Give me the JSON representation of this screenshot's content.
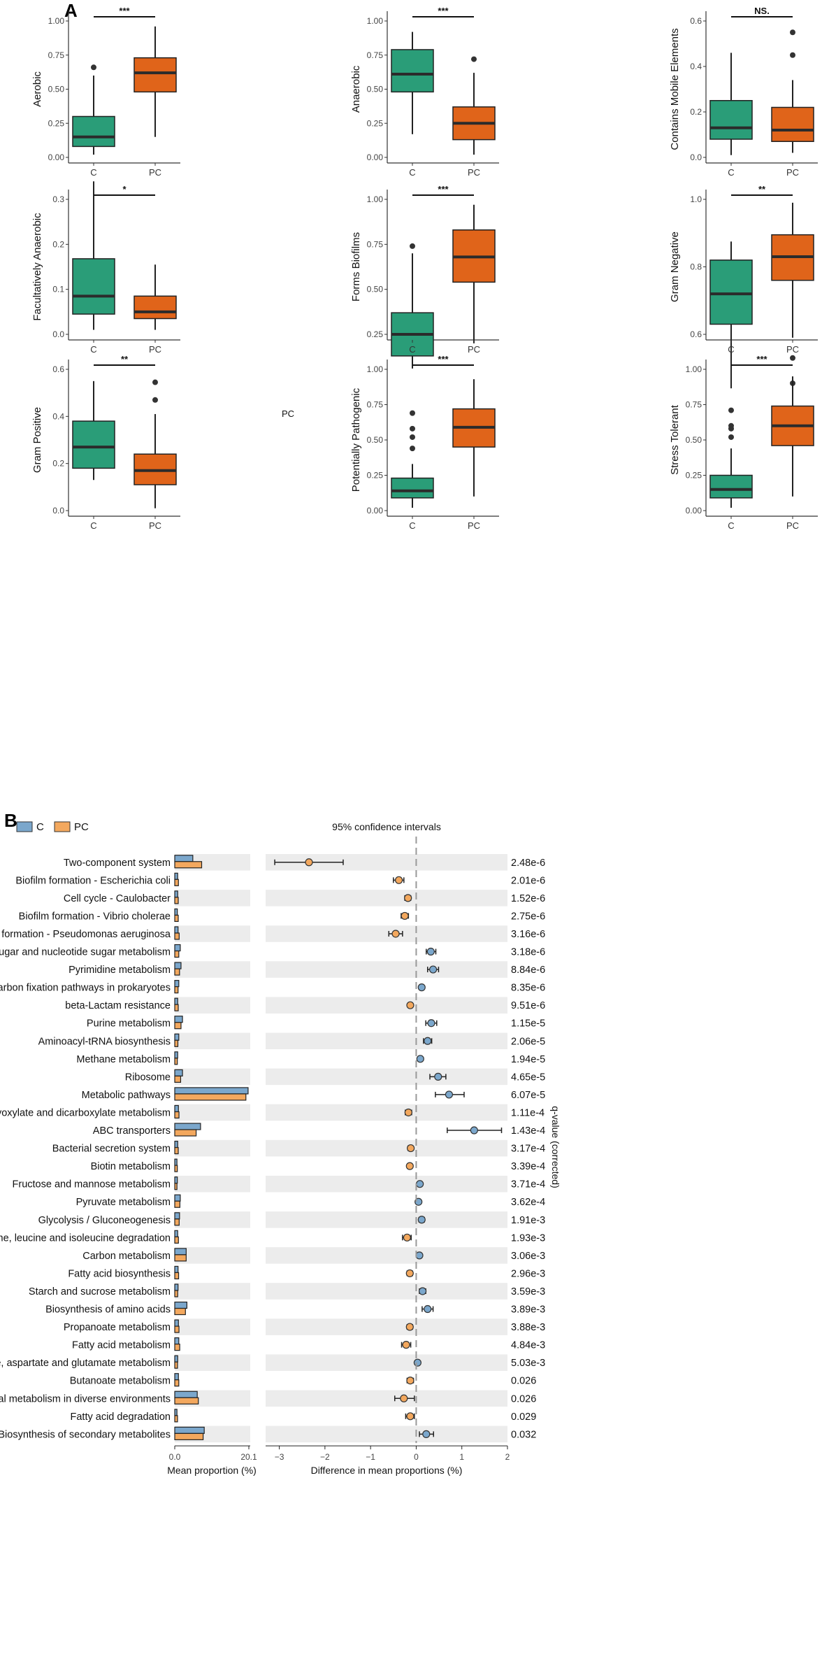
{
  "panel_a_label": "A",
  "panel_b_label": "B",
  "panel_a": {
    "group_labels": [
      "C",
      "PC"
    ],
    "colors": {
      "C": "#2a9d78",
      "PC": "#e0641a"
    },
    "plots": [
      {
        "ylabel": "Aerobic",
        "sig": "***",
        "yticks": [
          0.0,
          0.25,
          0.5,
          0.75,
          1.0
        ],
        "tick_labels": [
          "0.00",
          "0.25",
          "0.50",
          "0.75",
          "1.00"
        ],
        "boxes": [
          {
            "min": 0.02,
            "q1": 0.08,
            "med": 0.15,
            "q3": 0.3,
            "max": 0.6,
            "outliers": [
              0.66
            ]
          },
          {
            "min": 0.15,
            "q1": 0.48,
            "med": 0.62,
            "q3": 0.73,
            "max": 0.96,
            "outliers": []
          }
        ]
      },
      {
        "ylabel": "Anaerobic",
        "sig": "***",
        "yticks": [
          0.0,
          0.25,
          0.5,
          0.75,
          1.0
        ],
        "tick_labels": [
          "0.00",
          "0.25",
          "0.50",
          "0.75",
          "1.00"
        ],
        "boxes": [
          {
            "min": 0.17,
            "q1": 0.48,
            "med": 0.61,
            "q3": 0.79,
            "max": 0.92,
            "outliers": []
          },
          {
            "min": 0.02,
            "q1": 0.13,
            "med": 0.25,
            "q3": 0.37,
            "max": 0.62,
            "outliers": [
              0.72
            ]
          }
        ]
      },
      {
        "ylabel": "Contains Mobile Elements",
        "sig": "NS.",
        "yticks": [
          0.0,
          0.2,
          0.4,
          0.6
        ],
        "tick_labels": [
          "0.0",
          "0.2",
          "0.4",
          "0.6"
        ],
        "boxes": [
          {
            "min": 0.01,
            "q1": 0.08,
            "med": 0.13,
            "q3": 0.25,
            "max": 0.46,
            "outliers": []
          },
          {
            "min": 0.02,
            "q1": 0.07,
            "med": 0.12,
            "q3": 0.22,
            "max": 0.34,
            "outliers": [
              0.45,
              0.55
            ]
          }
        ]
      },
      {
        "ylabel": "Facultatively Anaerobic",
        "sig": "*",
        "yticks": [
          0.0,
          0.1,
          0.2,
          0.3
        ],
        "tick_labels": [
          "0.0",
          "0.1",
          "0.2",
          "0.3"
        ],
        "boxes": [
          {
            "min": 0.01,
            "q1": 0.045,
            "med": 0.085,
            "q3": 0.168,
            "max": 0.34,
            "outliers": []
          },
          {
            "min": 0.01,
            "q1": 0.035,
            "med": 0.05,
            "q3": 0.085,
            "max": 0.155,
            "outliers": []
          }
        ]
      },
      {
        "ylabel": "Forms Biofilms",
        "sig": "***",
        "yticks": [
          0.25,
          0.5,
          0.75,
          1.0
        ],
        "tick_labels": [
          "0.25",
          "0.50",
          "0.75",
          "1.00"
        ],
        "boxes": [
          {
            "min": 0.06,
            "q1": 0.13,
            "med": 0.25,
            "q3": 0.37,
            "max": 0.7,
            "outliers": [
              0.74
            ]
          },
          {
            "min": 0.2,
            "q1": 0.54,
            "med": 0.68,
            "q3": 0.83,
            "max": 0.97,
            "outliers": []
          }
        ]
      },
      {
        "ylabel": "Gram Negative",
        "sig": "**",
        "yticks": [
          0.6,
          0.8,
          1.0
        ],
        "tick_labels": [
          "0.6",
          "0.8",
          "1.0"
        ],
        "boxes": [
          {
            "min": 0.44,
            "q1": 0.63,
            "med": 0.72,
            "q3": 0.82,
            "max": 0.875,
            "outliers": []
          },
          {
            "min": 0.59,
            "q1": 0.76,
            "med": 0.83,
            "q3": 0.895,
            "max": 0.99,
            "outliers": [
              0.53,
              0.455
            ]
          }
        ]
      },
      {
        "ylabel": "Gram Positive",
        "sig": "**",
        "yticks": [
          0.0,
          0.2,
          0.4,
          0.6
        ],
        "tick_labels": [
          "0.0",
          "0.2",
          "0.4",
          "0.6"
        ],
        "boxes": [
          {
            "min": 0.13,
            "q1": 0.18,
            "med": 0.27,
            "q3": 0.38,
            "max": 0.55,
            "outliers": []
          },
          {
            "min": 0.01,
            "q1": 0.11,
            "med": 0.17,
            "q3": 0.24,
            "max": 0.41,
            "outliers": [
              0.47,
              0.545
            ]
          }
        ]
      },
      {
        "ylabel": "Potentially Pathogenic",
        "sig": "***",
        "yticks": [
          0.0,
          0.25,
          0.5,
          0.75,
          1.0
        ],
        "tick_labels": [
          "0.00",
          "0.25",
          "0.50",
          "0.75",
          "1.00"
        ],
        "boxes": [
          {
            "min": 0.02,
            "q1": 0.09,
            "med": 0.14,
            "q3": 0.23,
            "max": 0.33,
            "outliers": [
              0.44,
              0.52,
              0.58,
              0.69
            ]
          },
          {
            "min": 0.1,
            "q1": 0.45,
            "med": 0.59,
            "q3": 0.72,
            "max": 0.93,
            "outliers": []
          }
        ]
      },
      {
        "ylabel": "Stress Tolerant",
        "sig": "***",
        "yticks": [
          0.0,
          0.25,
          0.5,
          0.75,
          1.0
        ],
        "tick_labels": [
          "0.00",
          "0.25",
          "0.50",
          "0.75",
          "1.00"
        ],
        "boxes": [
          {
            "min": 0.02,
            "q1": 0.09,
            "med": 0.15,
            "q3": 0.25,
            "max": 0.44,
            "outliers": [
              0.52,
              0.58,
              0.6,
              0.71
            ]
          },
          {
            "min": 0.1,
            "q1": 0.46,
            "med": 0.6,
            "q3": 0.74,
            "max": 0.95,
            "outliers": []
          }
        ]
      }
    ]
  },
  "stray_label": "PC",
  "panel_b": {
    "legend": [
      {
        "name": "C",
        "color": "#7ba7cc"
      },
      {
        "name": "PC",
        "color": "#f3a85e"
      }
    ],
    "ci_title": "95% confidence intervals",
    "mean_xlabel": "Mean proportion (%)",
    "diff_xlabel": "Difference in mean proportions (%)",
    "qval_label": "q-value (corrected)",
    "mean_ticks": [
      "0.0",
      "20.1"
    ],
    "diff_ticks": [
      "−3",
      "−2",
      "−1",
      "0",
      "1",
      "2"
    ]
  },
  "chart_data": {
    "panel_a": {
      "type": "box",
      "groups": [
        "C",
        "PC"
      ],
      "plots": [
        "Aerobic",
        "Anaerobic",
        "Contains Mobile Elements",
        "Facultatively Anaerobic",
        "Forms Biofilms",
        "Gram Negative",
        "Gram Positive",
        "Potentially Pathogenic",
        "Stress Tolerant"
      ],
      "significance": [
        "***",
        "***",
        "NS.",
        "*",
        "***",
        "**",
        "**",
        "***",
        "***"
      ]
    },
    "panel_b": {
      "type": "extended_error_bar",
      "mean_xlim": [
        0,
        20.1
      ],
      "diff_xlim": [
        -3.3,
        2
      ],
      "rows": [
        {
          "name": "Two-component system",
          "mean_c": 4.9,
          "mean_pc": 7.3,
          "diff": -2.35,
          "lo": -3.1,
          "hi": -1.6,
          "q": "2.48e-6"
        },
        {
          "name": "Biofilm formation - Escherichia coli",
          "mean_c": 0.8,
          "mean_pc": 1.0,
          "diff": -0.38,
          "lo": -0.5,
          "hi": -0.27,
          "q": "2.01e-6"
        },
        {
          "name": "Cell cycle - Caulobacter",
          "mean_c": 0.8,
          "mean_pc": 0.95,
          "diff": -0.18,
          "lo": -0.25,
          "hi": -0.12,
          "q": "1.52e-6"
        },
        {
          "name": "Biofilm formation - Vibrio cholerae",
          "mean_c": 0.7,
          "mean_pc": 0.95,
          "diff": -0.25,
          "lo": -0.33,
          "hi": -0.17,
          "q": "2.75e-6"
        },
        {
          "name": "Biofilm formation - Pseudomonas aeruginosa",
          "mean_c": 0.9,
          "mean_pc": 1.2,
          "diff": -0.45,
          "lo": -0.6,
          "hi": -0.3,
          "q": "3.16e-6"
        },
        {
          "name": "Amino sugar and nucleotide sugar metabolism",
          "mean_c": 1.5,
          "mean_pc": 1.1,
          "diff": 0.32,
          "lo": 0.22,
          "hi": 0.43,
          "q": "3.18e-6"
        },
        {
          "name": "Pyrimidine metabolism",
          "mean_c": 1.7,
          "mean_pc": 1.3,
          "diff": 0.37,
          "lo": 0.25,
          "hi": 0.49,
          "q": "8.84e-6"
        },
        {
          "name": "Carbon fixation pathways in prokaryotes",
          "mean_c": 1.1,
          "mean_pc": 0.9,
          "diff": 0.12,
          "lo": 0.07,
          "hi": 0.16,
          "q": "8.35e-6"
        },
        {
          "name": "beta-Lactam resistance",
          "mean_c": 0.8,
          "mean_pc": 0.95,
          "diff": -0.13,
          "lo": -0.18,
          "hi": -0.08,
          "q": "9.51e-6"
        },
        {
          "name": "Purine metabolism",
          "mean_c": 2.1,
          "mean_pc": 1.7,
          "diff": 0.33,
          "lo": 0.21,
          "hi": 0.45,
          "q": "1.15e-5"
        },
        {
          "name": "Aminoacyl-tRNA biosynthesis",
          "mean_c": 1.1,
          "mean_pc": 0.85,
          "diff": 0.25,
          "lo": 0.16,
          "hi": 0.34,
          "q": "2.06e-5"
        },
        {
          "name": "Methane metabolism",
          "mean_c": 0.8,
          "mean_pc": 0.7,
          "diff": 0.09,
          "lo": 0.05,
          "hi": 0.13,
          "q": "1.94e-5"
        },
        {
          "name": "Ribosome",
          "mean_c": 2.1,
          "mean_pc": 1.6,
          "diff": 0.48,
          "lo": 0.3,
          "hi": 0.65,
          "q": "4.65e-5"
        },
        {
          "name": "Metabolic pathways",
          "mean_c": 19.9,
          "mean_pc": 19.3,
          "diff": 0.72,
          "lo": 0.42,
          "hi": 1.05,
          "q": "6.07e-5"
        },
        {
          "name": "Glyoxylate and dicarboxylate metabolism",
          "mean_c": 1.0,
          "mean_pc": 1.15,
          "diff": -0.17,
          "lo": -0.24,
          "hi": -0.1,
          "q": "1.11e-4"
        },
        {
          "name": "ABC transporters",
          "mean_c": 7.0,
          "mean_pc": 5.8,
          "diff": 1.27,
          "lo": 0.68,
          "hi": 1.87,
          "q": "1.43e-4"
        },
        {
          "name": "Bacterial secretion system",
          "mean_c": 0.8,
          "mean_pc": 0.95,
          "diff": -0.12,
          "lo": -0.18,
          "hi": -0.07,
          "q": "3.17e-4"
        },
        {
          "name": "Biotin metabolism",
          "mean_c": 0.6,
          "mean_pc": 0.7,
          "diff": -0.14,
          "lo": -0.19,
          "hi": -0.09,
          "q": "3.39e-4"
        },
        {
          "name": "Fructose and mannose metabolism",
          "mean_c": 0.7,
          "mean_pc": 0.6,
          "diff": 0.08,
          "lo": 0.04,
          "hi": 0.12,
          "q": "3.71e-4"
        },
        {
          "name": "Pyruvate metabolism",
          "mean_c": 1.5,
          "mean_pc": 1.4,
          "diff": 0.05,
          "lo": 0.02,
          "hi": 0.08,
          "q": "3.62e-4"
        },
        {
          "name": "Glycolysis / Gluconeogenesis",
          "mean_c": 1.3,
          "mean_pc": 1.2,
          "diff": 0.12,
          "lo": 0.06,
          "hi": 0.18,
          "q": "1.91e-3"
        },
        {
          "name": "Valine, leucine and isoleucine degradation",
          "mean_c": 0.8,
          "mean_pc": 1.0,
          "diff": -0.2,
          "lo": -0.3,
          "hi": -0.11,
          "q": "1.93e-3"
        },
        {
          "name": "Carbon metabolism",
          "mean_c": 3.1,
          "mean_pc": 3.1,
          "diff": 0.07,
          "lo": 0.03,
          "hi": 0.11,
          "q": "3.06e-3"
        },
        {
          "name": "Fatty acid biosynthesis",
          "mean_c": 0.9,
          "mean_pc": 1.05,
          "diff": -0.14,
          "lo": -0.2,
          "hi": -0.08,
          "q": "2.96e-3"
        },
        {
          "name": "Starch and sucrose metabolism",
          "mean_c": 0.9,
          "mean_pc": 0.8,
          "diff": 0.14,
          "lo": 0.07,
          "hi": 0.21,
          "q": "3.59e-3"
        },
        {
          "name": "Biosynthesis of amino acids",
          "mean_c": 3.3,
          "mean_pc": 2.9,
          "diff": 0.25,
          "lo": 0.13,
          "hi": 0.37,
          "q": "3.89e-3"
        },
        {
          "name": "Propanoate metabolism",
          "mean_c": 1.0,
          "mean_pc": 1.15,
          "diff": -0.14,
          "lo": -0.2,
          "hi": -0.08,
          "q": "3.88e-3"
        },
        {
          "name": "Fatty acid metabolism",
          "mean_c": 1.1,
          "mean_pc": 1.35,
          "diff": -0.22,
          "lo": -0.32,
          "hi": -0.12,
          "q": "4.84e-3"
        },
        {
          "name": "Alanine, aspartate and glutamate metabolism",
          "mean_c": 0.8,
          "mean_pc": 0.75,
          "diff": 0.03,
          "lo": 0.01,
          "hi": 0.06,
          "q": "5.03e-3"
        },
        {
          "name": "Butanoate metabolism",
          "mean_c": 1.0,
          "mean_pc": 1.1,
          "diff": -0.13,
          "lo": -0.2,
          "hi": -0.06,
          "q": "0.026"
        },
        {
          "name": "Microbial metabolism in diverse environments",
          "mean_c": 6.1,
          "mean_pc": 6.4,
          "diff": -0.27,
          "lo": -0.47,
          "hi": -0.04,
          "q": "0.026"
        },
        {
          "name": "Fatty acid degradation",
          "mean_c": 0.6,
          "mean_pc": 0.75,
          "diff": -0.13,
          "lo": -0.23,
          "hi": -0.04,
          "q": "0.029"
        },
        {
          "name": "Biosynthesis of secondary metabolites",
          "mean_c": 8.0,
          "mean_pc": 7.7,
          "diff": 0.22,
          "lo": 0.07,
          "hi": 0.38,
          "q": "0.032"
        }
      ]
    }
  }
}
